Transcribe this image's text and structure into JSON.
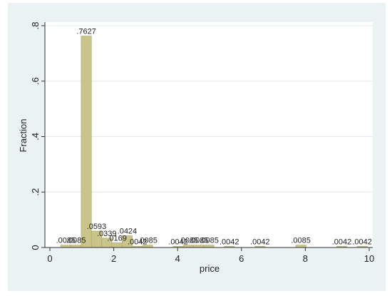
{
  "chart_data": {
    "type": "bar",
    "xlabel": "price",
    "ylabel": "Fraction",
    "xlim": [
      0,
      10
    ],
    "ylim": [
      0,
      0.8
    ],
    "xticks": [
      {
        "value": 0,
        "label": "0"
      },
      {
        "value": 2,
        "label": "2"
      },
      {
        "value": 4,
        "label": "4"
      },
      {
        "value": 6,
        "label": "6"
      },
      {
        "value": 8,
        "label": "8"
      },
      {
        "value": 10,
        "label": "10"
      }
    ],
    "yticks": [
      {
        "value": 0,
        "label": "0"
      },
      {
        "value": 0.2,
        "label": ".2"
      },
      {
        "value": 0.4,
        "label": ".4"
      },
      {
        "value": 0.6,
        "label": ".6"
      },
      {
        "value": 0.8,
        "label": ".8"
      }
    ],
    "bar_width": 0.32,
    "bars": [
      {
        "x": 0.5,
        "value": 0.0085,
        "label": ".0085"
      },
      {
        "x": 0.82,
        "value": 0.0085,
        "label": ".0085"
      },
      {
        "x": 1.14,
        "value": 0.7627,
        "label": ".7627"
      },
      {
        "x": 1.46,
        "value": 0.0593,
        "label": ".0593"
      },
      {
        "x": 1.78,
        "value": 0.0339,
        "label": ".0339"
      },
      {
        "x": 2.1,
        "value": 0.0169,
        "label": ".0169"
      },
      {
        "x": 2.42,
        "value": 0.0424,
        "label": ".0424"
      },
      {
        "x": 2.74,
        "value": 0.0042,
        "label": ".0042"
      },
      {
        "x": 3.06,
        "value": 0.0085,
        "label": ".0085"
      },
      {
        "x": 4.02,
        "value": 0.0042,
        "label": ".0042"
      },
      {
        "x": 4.34,
        "value": 0.0085,
        "label": ".0085"
      },
      {
        "x": 4.66,
        "value": 0.0085,
        "label": ".0085"
      },
      {
        "x": 4.98,
        "value": 0.0085,
        "label": ".0085"
      },
      {
        "x": 5.62,
        "value": 0.0042,
        "label": ".0042"
      },
      {
        "x": 6.58,
        "value": 0.0042,
        "label": ".0042"
      },
      {
        "x": 7.86,
        "value": 0.0085,
        "label": ".0085"
      },
      {
        "x": 9.14,
        "value": 0.0042,
        "label": ".0042"
      },
      {
        "x": 9.78,
        "value": 0.0042,
        "label": ".0042"
      }
    ],
    "grid": true,
    "colors": {
      "bar_fill": "#c8c48a",
      "bar_stroke": "#a8a46a",
      "plot_bg": "#ffffff",
      "frame_bg": "#eaf2f3",
      "grid": "#e1ebee",
      "axis": "#333333"
    }
  }
}
